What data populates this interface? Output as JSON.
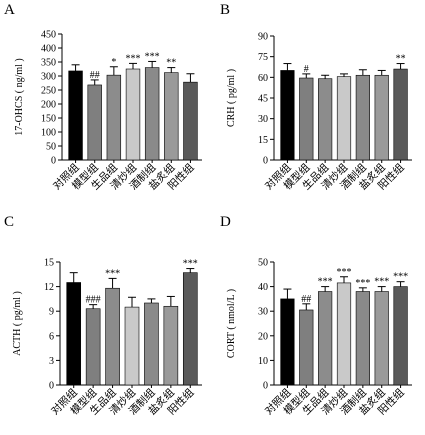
{
  "colors": {
    "axis": "#000000",
    "bars": [
      "#000000",
      "#7f7f7f",
      "#8c8c8c",
      "#c9c9c9",
      "#8a8a8a",
      "#9a9a9a",
      "#5a5a5a"
    ],
    "error": "#000000"
  },
  "chart_data": [
    {
      "panel_letter": "A",
      "type": "bar",
      "categories": [
        "对照组",
        "模型组",
        "生品组",
        "清炒组",
        "酒制组",
        "盐炙组",
        "阳性组"
      ],
      "values": [
        318,
        268,
        303,
        325,
        330,
        312,
        278
      ],
      "errors": [
        22,
        18,
        30,
        20,
        22,
        18,
        30
      ],
      "annotations": [
        "",
        "##",
        "*",
        "***",
        "***",
        "**",
        ""
      ],
      "ylabel": "17-OHCS ( ng/ml )",
      "ylim": [
        0,
        450
      ],
      "yticks": [
        0,
        50,
        100,
        150,
        200,
        250,
        300,
        350,
        400,
        450
      ],
      "grid": false
    },
    {
      "panel_letter": "B",
      "type": "bar",
      "categories": [
        "对照组",
        "模型组",
        "生品组",
        "清炒组",
        "酒制组",
        "盐炙组",
        "阳性组"
      ],
      "values": [
        65,
        59.5,
        59,
        60.5,
        61.5,
        61.5,
        66
      ],
      "errors": [
        5,
        3,
        2.5,
        2,
        4,
        3.5,
        4
      ],
      "annotations": [
        "",
        "#",
        "",
        "",
        "",
        "",
        "**"
      ],
      "ylabel": "CRH ( pg/ml )",
      "ylim": [
        0,
        90
      ],
      "yticks": [
        0,
        15,
        30,
        45,
        60,
        75,
        90
      ],
      "grid": false
    },
    {
      "panel_letter": "C",
      "type": "bar",
      "categories": [
        "对照组",
        "模型组",
        "生品组",
        "清炒组",
        "酒制组",
        "盐炙组",
        "阳性组"
      ],
      "values": [
        12.5,
        9.3,
        11.8,
        9.5,
        10,
        9.6,
        13.7
      ],
      "errors": [
        1.2,
        0.5,
        1.2,
        1.2,
        0.5,
        1.2,
        0.5
      ],
      "annotations": [
        "",
        "###",
        "***",
        "",
        "",
        "",
        "***"
      ],
      "ylabel": "ACTH ( pg/ml )",
      "ylim": [
        0,
        15
      ],
      "yticks": [
        0,
        3,
        6,
        9,
        12,
        15
      ],
      "grid": false
    },
    {
      "panel_letter": "D",
      "type": "bar",
      "categories": [
        "对照组",
        "模型组",
        "生品组",
        "清炒组",
        "酒制组",
        "盐炙组",
        "阳性组"
      ],
      "values": [
        35,
        30.5,
        38,
        41.5,
        38,
        38,
        40
      ],
      "errors": [
        4,
        2.5,
        2,
        2.5,
        1.5,
        2,
        2
      ],
      "annotations": [
        "",
        "##",
        "***",
        "***",
        "***",
        "***",
        "***"
      ],
      "ylabel": "CORT ( nmol/L )",
      "ylim": [
        0,
        50
      ],
      "yticks": [
        0,
        10,
        20,
        30,
        40,
        50
      ],
      "grid": false
    }
  ]
}
